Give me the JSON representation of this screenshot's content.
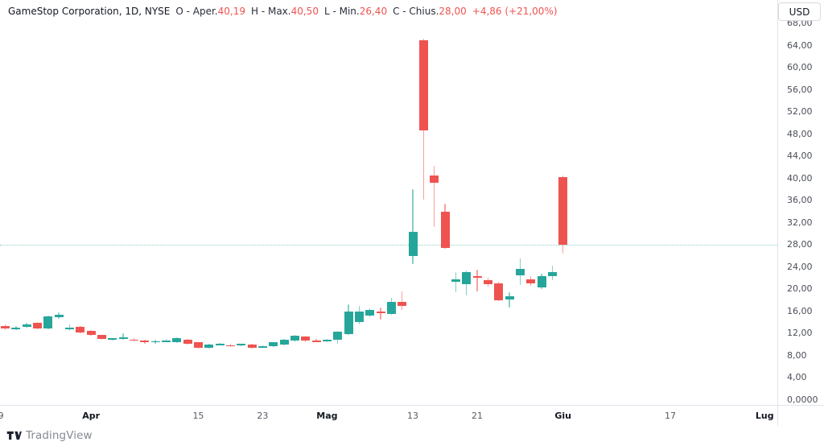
{
  "header": {
    "title": "GameStop Corporation, 1D, NYSE",
    "ohlc_fields": [
      {
        "label": "O - Aper.",
        "value": "40,19"
      },
      {
        "label": "H - Max.",
        "value": "40,50"
      },
      {
        "label": "L - Min.",
        "value": "26,40"
      },
      {
        "label": "C - Chius.",
        "value": "28,00"
      }
    ],
    "change": "+4,86 (+21,00%)"
  },
  "price_axis": {
    "currency_button": "USD",
    "ticks": [
      {
        "price": 68,
        "label": "68,00"
      },
      {
        "price": 64,
        "label": "64,00"
      },
      {
        "price": 60,
        "label": "60,00"
      },
      {
        "price": 56,
        "label": "56,00"
      },
      {
        "price": 52,
        "label": "52,00"
      },
      {
        "price": 48,
        "label": "48,00"
      },
      {
        "price": 44,
        "label": "44,00"
      },
      {
        "price": 40,
        "label": "40,00"
      },
      {
        "price": 36,
        "label": "36,00"
      },
      {
        "price": 32,
        "label": "32,00"
      },
      {
        "price": 28,
        "label": "28,00"
      },
      {
        "price": 24,
        "label": "24,00"
      },
      {
        "price": 20,
        "label": "20,00"
      },
      {
        "price": 16,
        "label": "16,00"
      },
      {
        "price": 12,
        "label": "12,00"
      },
      {
        "price": 8,
        "label": "8,00"
      },
      {
        "price": 4,
        "label": "4,00"
      },
      {
        "price": 0,
        "label": "0,0000"
      }
    ]
  },
  "time_axis": {
    "ticks": [
      {
        "label": "9",
        "index": -0.4,
        "major": false
      },
      {
        "label": "Apr",
        "index": 8,
        "major": true
      },
      {
        "label": "15",
        "index": 18,
        "major": false
      },
      {
        "label": "23",
        "index": 24,
        "major": false
      },
      {
        "label": "Mag",
        "index": 30,
        "major": true
      },
      {
        "label": "13",
        "index": 38,
        "major": false
      },
      {
        "label": "21",
        "index": 44,
        "major": false
      },
      {
        "label": "Giu",
        "index": 52,
        "major": true
      },
      {
        "label": "17",
        "index": 62,
        "major": false
      },
      {
        "label": "Lug",
        "index": 70.8,
        "major": true
      }
    ]
  },
  "logo": {
    "text": "TradingView"
  },
  "colors": {
    "up": "#26a69a",
    "down": "#ef5350",
    "value_text": "#ef5350",
    "price_line": "rgba(38,166,154,0.55)",
    "axis_border": "#e0e3eb",
    "title_text": "#131722",
    "axis_text": "#4a4e59"
  },
  "chart_data": {
    "type": "candlestick",
    "title": "GameStop Corporation, 1D, NYSE",
    "symbol": "GameStop Corporation",
    "interval": "1D",
    "exchange": "NYSE",
    "currency": "USD",
    "last_close": 28.0,
    "change_abs": 4.86,
    "change_pct": 21.0,
    "ylim": [
      0,
      72.2
    ],
    "y_tick_step": 4,
    "grid": "off",
    "x_tick_labels": [
      "9",
      "Apr",
      "15",
      "23",
      "Mag",
      "13",
      "21",
      "Giu",
      "17",
      "Lug"
    ],
    "candles_format": [
      "open",
      "high",
      "low",
      "close"
    ],
    "candles": [
      [
        13.4,
        13.7,
        12.6,
        12.9
      ],
      [
        12.9,
        13.4,
        12.6,
        13.0
      ],
      [
        13.2,
        13.9,
        13.0,
        13.6
      ],
      [
        13.9,
        14.1,
        12.7,
        12.9
      ],
      [
        12.9,
        15.2,
        12.8,
        15.1
      ],
      [
        14.9,
        15.8,
        14.6,
        15.4
      ],
      [
        12.8,
        13.6,
        12.4,
        13.0
      ],
      [
        13.2,
        13.3,
        12.1,
        12.2
      ],
      [
        12.5,
        12.6,
        11.6,
        11.7
      ],
      [
        11.7,
        11.8,
        10.9,
        11.0
      ],
      [
        10.9,
        11.2,
        10.7,
        11.1
      ],
      [
        11.0,
        12.0,
        10.9,
        11.3
      ],
      [
        10.9,
        11.1,
        10.6,
        10.8
      ],
      [
        10.7,
        10.9,
        10.2,
        10.4
      ],
      [
        10.4,
        10.8,
        10.2,
        10.6
      ],
      [
        10.7,
        11.0,
        10.5,
        10.7
      ],
      [
        10.4,
        11.3,
        10.3,
        11.2
      ],
      [
        10.9,
        11.0,
        10.0,
        10.1
      ],
      [
        10.4,
        10.5,
        9.3,
        9.4
      ],
      [
        9.4,
        10.1,
        9.2,
        10.0
      ],
      [
        10.0,
        10.3,
        9.8,
        10.1
      ],
      [
        9.9,
        10.2,
        9.6,
        9.8
      ],
      [
        9.9,
        10.2,
        9.7,
        10.1
      ],
      [
        10.0,
        10.1,
        9.3,
        9.4
      ],
      [
        9.6,
        9.9,
        9.4,
        9.7
      ],
      [
        9.7,
        10.5,
        9.6,
        10.4
      ],
      [
        10.0,
        11.0,
        9.9,
        10.9
      ],
      [
        10.7,
        11.7,
        10.5,
        11.6
      ],
      [
        11.4,
        11.6,
        10.5,
        10.7
      ],
      [
        10.7,
        11.0,
        10.4,
        10.6
      ],
      [
        10.7,
        11.0,
        10.5,
        10.8
      ],
      [
        10.9,
        12.4,
        10.1,
        12.3
      ],
      [
        11.9,
        17.3,
        11.8,
        16.0
      ],
      [
        14.1,
        17.0,
        13.6,
        16.0
      ],
      [
        15.2,
        16.6,
        15.0,
        16.2
      ],
      [
        15.9,
        16.7,
        14.5,
        15.7
      ],
      [
        15.5,
        18.4,
        15.4,
        17.7
      ],
      [
        17.7,
        19.6,
        16.2,
        17.0
      ],
      [
        26.0,
        38.1,
        24.5,
        30.4
      ],
      [
        65.0,
        65.3,
        36.2,
        48.7
      ],
      [
        40.5,
        42.3,
        31.2,
        39.2
      ],
      [
        34.0,
        35.4,
        27.3,
        27.4
      ],
      [
        21.3,
        23.1,
        19.4,
        21.8
      ],
      [
        20.9,
        23.4,
        18.9,
        23.1
      ],
      [
        22.3,
        23.5,
        19.6,
        22.0
      ],
      [
        21.6,
        22.1,
        20.5,
        20.9
      ],
      [
        21.0,
        21.3,
        17.8,
        18.0
      ],
      [
        18.1,
        19.4,
        16.7,
        18.7
      ],
      [
        22.5,
        25.6,
        20.7,
        23.6
      ],
      [
        21.8,
        22.3,
        20.6,
        21.0
      ],
      [
        20.3,
        22.8,
        20.0,
        22.4
      ],
      [
        22.4,
        24.2,
        21.6,
        23.1
      ],
      [
        40.19,
        40.5,
        26.4,
        28.0
      ]
    ]
  }
}
